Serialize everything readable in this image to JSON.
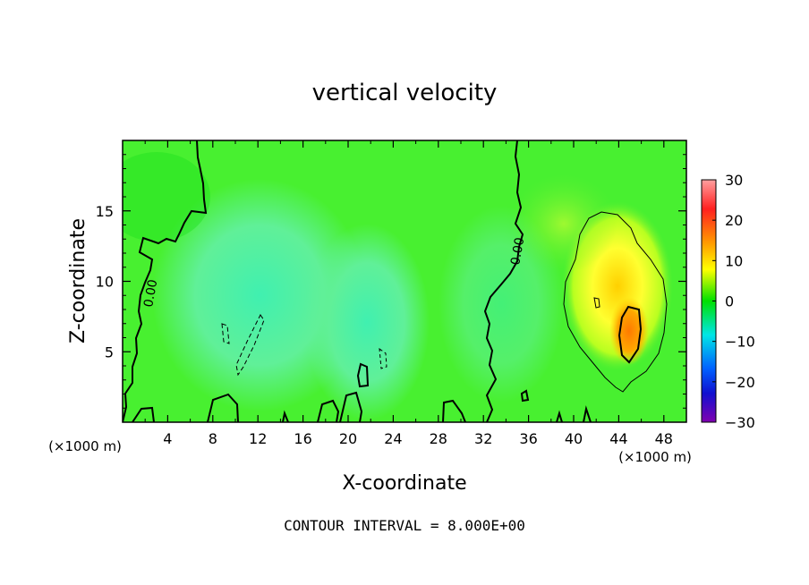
{
  "chart_data": {
    "type": "heatmap",
    "title": "vertical velocity",
    "xlabel": "X-coordinate",
    "ylabel": "Z-coordinate",
    "x_unit": "(×1000 m)",
    "y_unit": "(×1000 m)",
    "xlim": [
      0,
      50
    ],
    "ylim": [
      0,
      20
    ],
    "x_ticks": [
      4,
      8,
      12,
      16,
      20,
      24,
      28,
      32,
      36,
      40,
      44,
      48
    ],
    "y_ticks": [
      5,
      10,
      15
    ],
    "colorbar": {
      "range": [
        -30,
        30
      ],
      "ticks": [
        30,
        20,
        10,
        0,
        -10,
        -20,
        -30
      ],
      "tick_labels": [
        "30",
        "20",
        "10",
        "0",
        "−10",
        "−20",
        "−30"
      ]
    },
    "contour_label": "0.00",
    "footer": "CONTOUR INTERVAL = 8.000E+00",
    "features": [
      {
        "type": "updraft",
        "x": 45,
        "z": 7,
        "w_max": 16
      },
      {
        "type": "weak updraft",
        "x": 42,
        "z": 12,
        "w_max": 7
      },
      {
        "type": "downdraft",
        "x": 11,
        "z": 6,
        "w_min": -8
      },
      {
        "type": "downdraft",
        "x": 23,
        "z": 5,
        "w_min": -6
      }
    ]
  }
}
